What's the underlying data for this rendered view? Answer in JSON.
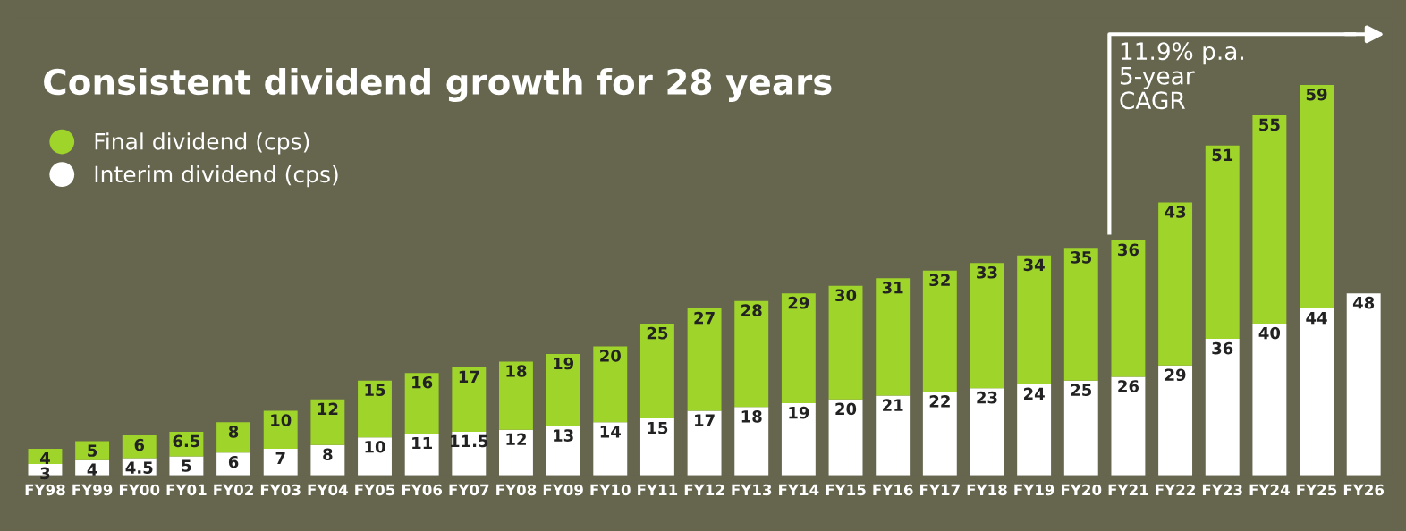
{
  "chart_data": {
    "type": "bar",
    "stacked": true,
    "title": "Consistent dividend growth for 28 years",
    "categories": [
      "FY98",
      "FY99",
      "FY00",
      "FY01",
      "FY02",
      "FY03",
      "FY04",
      "FY05",
      "FY06",
      "FY07",
      "FY08",
      "FY09",
      "FY10",
      "FY11",
      "FY12",
      "FY13",
      "FY14",
      "FY15",
      "FY16",
      "FY17",
      "FY18",
      "FY19",
      "FY20",
      "FY21",
      "FY22",
      "FY23",
      "FY24",
      "FY25",
      "FY26"
    ],
    "series": [
      {
        "name": "Interim dividend (cps)",
        "color": "#ffffff",
        "values": [
          3,
          4,
          4.5,
          5,
          6,
          7,
          8,
          10,
          11,
          11.5,
          12,
          13,
          14,
          15,
          17,
          18,
          19,
          20,
          21,
          22,
          23,
          24,
          25,
          26,
          29,
          36,
          40,
          44,
          48
        ]
      },
      {
        "name": "Final dividend (cps)",
        "color": "#9fd42a",
        "values": [
          4,
          5,
          6,
          6.5,
          8,
          10,
          12,
          15,
          16,
          17,
          18,
          19,
          20,
          25,
          27,
          28,
          29,
          30,
          31,
          32,
          33,
          34,
          35,
          36,
          43,
          51,
          55,
          59,
          null
        ]
      }
    ],
    "data_labels": true,
    "legend": "top left",
    "tick_labels": "x",
    "grid": false,
    "annotations": [
      "11.9% p.a.\n5-year\nCAGR"
    ]
  }
}
